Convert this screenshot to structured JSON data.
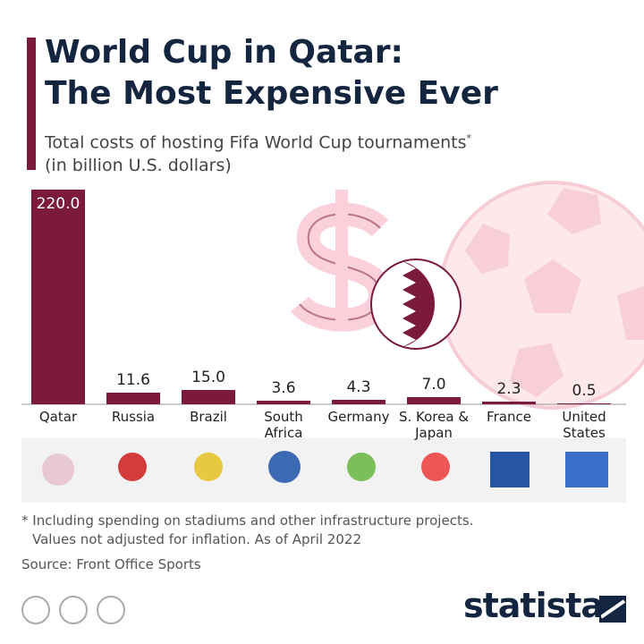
{
  "chart_data": {
    "type": "bar",
    "title": [
      "World Cup in Qatar:",
      "The Most Expensive Ever"
    ],
    "subtitle": [
      "Total costs of hosting Fifa World Cup tournaments",
      "(in billion U.S. dollars)"
    ],
    "subtitle_marker": "*",
    "categories": [
      "Qatar",
      "Russia",
      "Brazil",
      "South Africa",
      "Germany",
      "S. Korea & Japan",
      "France",
      "United States"
    ],
    "values": [
      220,
      11.6,
      15,
      3.6,
      4.3,
      7,
      2.3,
      0.5
    ],
    "value_labels": [
      "220.0",
      "11.6",
      "15.0",
      "3.6",
      "4.3",
      "7.0",
      "2.3",
      "0.5"
    ],
    "color": "#7b1a3c",
    "footnote": [
      "* Including spending on stadiums and other infrastructure projects.",
      "Values not adjusted for inflation. As of April 2022"
    ],
    "source": "Source: Front Office Sports",
    "brand": "statista"
  }
}
